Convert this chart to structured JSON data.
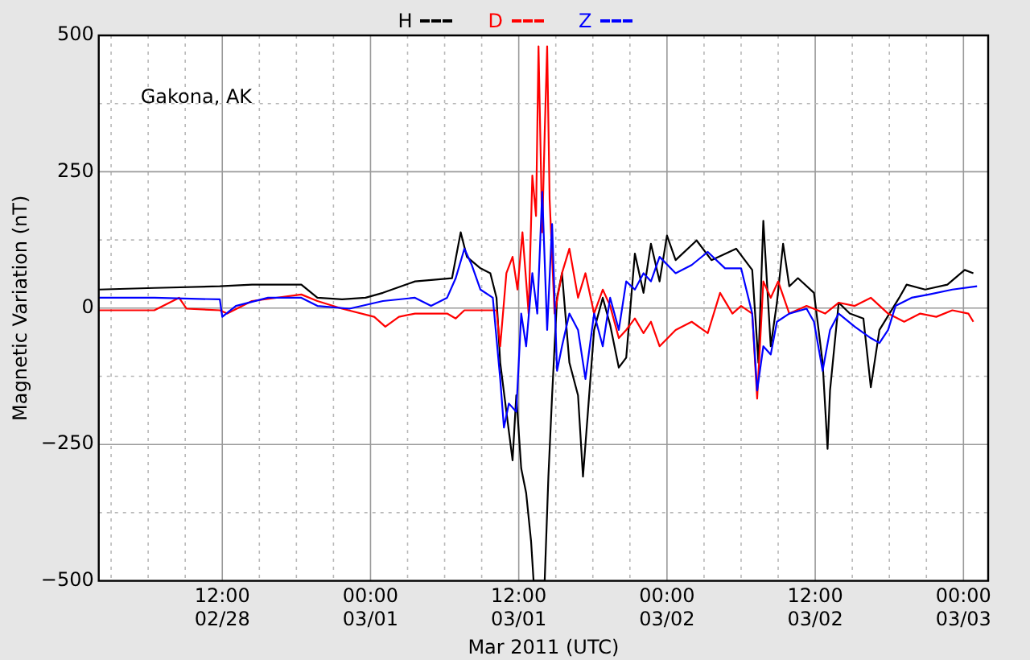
{
  "chart_data": {
    "type": "line",
    "xlabel": "Mar 2011 (UTC)",
    "ylabel": "Magnetic Variation (nT)",
    "annotations": [
      "Gakona, AK"
    ],
    "xlim": [
      "2011-02-28T02:00",
      "2011-03-03T02:00"
    ],
    "xticks": [
      {
        "value": "2011-02-28T03:00",
        "label": null
      },
      {
        "value": "2011-02-28T06:00",
        "label": null
      },
      {
        "value": "2011-02-28T09:00",
        "label": null
      },
      {
        "value": "2011-02-28T12:00",
        "label": "12:00\n02/28"
      },
      {
        "value": "2011-02-28T15:00",
        "label": null
      },
      {
        "value": "2011-02-28T18:00",
        "label": null
      },
      {
        "value": "2011-02-28T21:00",
        "label": null
      },
      {
        "value": "2011-03-01T00:00",
        "label": "00:00\n03/01"
      },
      {
        "value": "2011-03-01T03:00",
        "label": null
      },
      {
        "value": "2011-03-01T06:00",
        "label": null
      },
      {
        "value": "2011-03-01T09:00",
        "label": null
      },
      {
        "value": "2011-03-01T12:00",
        "label": "12:00\n03/01"
      },
      {
        "value": "2011-03-01T15:00",
        "label": null
      },
      {
        "value": "2011-03-01T18:00",
        "label": null
      },
      {
        "value": "2011-03-01T21:00",
        "label": null
      },
      {
        "value": "2011-03-02T00:00",
        "label": "00:00\n03/02"
      },
      {
        "value": "2011-03-02T03:00",
        "label": null
      },
      {
        "value": "2011-03-02T06:00",
        "label": null
      },
      {
        "value": "2011-03-02T09:00",
        "label": null
      },
      {
        "value": "2011-03-02T12:00",
        "label": "12:00\n03/02"
      },
      {
        "value": "2011-03-02T15:00",
        "label": null
      },
      {
        "value": "2011-03-02T18:00",
        "label": null
      },
      {
        "value": "2011-03-02T21:00",
        "label": null
      },
      {
        "value": "2011-03-03T00:00",
        "label": "00:00\n03/03"
      }
    ],
    "ylim": [
      -500,
      500
    ],
    "yticks": [
      {
        "value": -500,
        "label": "−500"
      },
      {
        "value": -375,
        "label": null
      },
      {
        "value": -250,
        "label": "−250"
      },
      {
        "value": -125,
        "label": null
      },
      0,
      {
        "value": 125,
        "label": null
      },
      250,
      {
        "value": 375,
        "label": null
      },
      500
    ],
    "grid": true,
    "legend": "top",
    "marker": "none",
    "line_style": "solid",
    "series": [
      {
        "name": "H",
        "color": "#000000",
        "x": [
          "2011-02-28T02:00",
          "2011-02-28T06:30",
          "2011-02-28T11:48",
          "2011-02-28T14:24",
          "2011-02-28T18:24",
          "2011-02-28T19:42",
          "2011-02-28T21:42",
          "2011-02-28T23:36",
          "2011-03-01T01:00",
          "2011-03-01T03:36",
          "2011-03-01T06:36",
          "2011-03-01T07:18",
          "2011-03-01T07:48",
          "2011-03-01T08:54",
          "2011-03-01T09:42",
          "2011-03-01T10:12",
          "2011-03-01T10:30",
          "2011-03-01T11:00",
          "2011-03-01T11:30",
          "2011-03-01T11:48",
          "2011-03-01T12:12",
          "2011-03-01T12:36",
          "2011-03-01T13:00",
          "2011-03-01T13:12",
          "2011-03-01T14:06",
          "2011-03-01T14:24",
          "2011-03-01T14:42",
          "2011-03-01T15:06",
          "2011-03-01T15:30",
          "2011-03-01T16:06",
          "2011-03-01T16:48",
          "2011-03-01T17:12",
          "2011-03-01T17:36",
          "2011-03-01T18:06",
          "2011-03-01T18:48",
          "2011-03-01T19:24",
          "2011-03-01T20:06",
          "2011-03-01T20:42",
          "2011-03-01T21:24",
          "2011-03-01T22:06",
          "2011-03-01T22:42",
          "2011-03-01T23:24",
          "2011-03-02T00:00",
          "2011-03-02T00:42",
          "2011-03-02T02:24",
          "2011-03-02T03:36",
          "2011-03-02T05:36",
          "2011-03-02T06:54",
          "2011-03-02T07:24",
          "2011-03-02T07:48",
          "2011-03-02T08:24",
          "2011-03-02T08:54",
          "2011-03-02T09:24",
          "2011-03-02T09:54",
          "2011-03-02T10:36",
          "2011-03-02T11:54",
          "2011-03-02T12:36",
          "2011-03-02T13:00",
          "2011-03-02T13:12",
          "2011-03-02T13:54",
          "2011-03-02T14:48",
          "2011-03-02T15:54",
          "2011-03-02T16:30",
          "2011-03-02T17:12",
          "2011-03-02T18:48",
          "2011-03-02T19:24",
          "2011-03-02T20:54",
          "2011-03-02T22:42",
          "2011-03-03T00:06",
          "2011-03-03T00:48"
        ],
        "values": [
          34,
          37,
          40,
          43,
          43,
          19,
          16,
          19,
          28,
          49,
          55,
          139,
          94,
          73,
          64,
          19,
          -100,
          -190,
          -279,
          -160,
          -294,
          -339,
          -428,
          -500,
          -500,
          -309,
          -160,
          19,
          64,
          -100,
          -160,
          -309,
          -190,
          -40,
          19,
          -31,
          -109,
          -91,
          100,
          28,
          118,
          49,
          133,
          88,
          124,
          88,
          109,
          70,
          -100,
          160,
          -70,
          10,
          118,
          40,
          55,
          28,
          -100,
          -258,
          -151,
          10,
          -10,
          -19,
          -145,
          -40,
          19,
          43,
          34,
          43,
          70,
          64
        ]
      },
      {
        "name": "D",
        "color": "#ff0000",
        "x": [
          "2011-02-28T02:00",
          "2011-02-28T06:30",
          "2011-02-28T08:30",
          "2011-02-28T09:06",
          "2011-02-28T11:48",
          "2011-02-28T12:24",
          "2011-02-28T14:24",
          "2011-02-28T18:24",
          "2011-02-28T19:42",
          "2011-02-28T21:42",
          "2011-03-01T00:18",
          "2011-03-01T01:12",
          "2011-03-01T02:18",
          "2011-03-01T03:36",
          "2011-03-01T06:12",
          "2011-03-01T06:54",
          "2011-03-01T07:36",
          "2011-03-01T10:12",
          "2011-03-01T10:30",
          "2011-03-01T11:00",
          "2011-03-01T11:30",
          "2011-03-01T11:54",
          "2011-03-01T12:18",
          "2011-03-01T12:48",
          "2011-03-01T13:06",
          "2011-03-01T13:24",
          "2011-03-01T13:36",
          "2011-03-01T13:54",
          "2011-03-01T14:06",
          "2011-03-01T14:18",
          "2011-03-01T14:30",
          "2011-03-01T14:54",
          "2011-03-01T15:30",
          "2011-03-01T16:06",
          "2011-03-01T16:48",
          "2011-03-01T17:24",
          "2011-03-01T18:06",
          "2011-03-01T18:48",
          "2011-03-01T19:24",
          "2011-03-01T20:06",
          "2011-03-01T20:42",
          "2011-03-01T21:24",
          "2011-03-01T22:06",
          "2011-03-01T22:42",
          "2011-03-01T23:24",
          "2011-03-02T00:42",
          "2011-03-02T02:00",
          "2011-03-02T03:18",
          "2011-03-02T04:18",
          "2011-03-02T05:18",
          "2011-03-02T06:00",
          "2011-03-02T06:54",
          "2011-03-02T07:18",
          "2011-03-02T07:48",
          "2011-03-02T08:24",
          "2011-03-02T09:00",
          "2011-03-02T09:54",
          "2011-03-02T11:18",
          "2011-03-02T12:12",
          "2011-03-02T12:48",
          "2011-03-02T13:54",
          "2011-03-02T15:12",
          "2011-03-02T16:30",
          "2011-03-02T17:54",
          "2011-03-02T19:12",
          "2011-03-02T20:30",
          "2011-03-02T21:48",
          "2011-03-02T23:06",
          "2011-03-03T00:24",
          "2011-03-03T00:48"
        ],
        "values": [
          -4,
          -4,
          19,
          -1,
          -4,
          -10,
          13,
          25,
          13,
          -1,
          -16,
          -34,
          -16,
          -10,
          -10,
          -19,
          -4,
          -4,
          -70,
          64,
          94,
          34,
          139,
          -10,
          243,
          169,
          480,
          139,
          320,
          480,
          199,
          -10,
          64,
          109,
          19,
          64,
          -10,
          34,
          4,
          -55,
          -40,
          -19,
          -46,
          -25,
          -70,
          -40,
          -25,
          -46,
          28,
          -10,
          4,
          -10,
          -166,
          49,
          19,
          49,
          -10,
          4,
          -4,
          -10,
          10,
          4,
          19,
          -10,
          -25,
          -10,
          -16,
          -4,
          -10,
          -25
        ]
      },
      {
        "name": "Z",
        "color": "#0000ff",
        "x": [
          "2011-02-28T02:00",
          "2011-02-28T06:30",
          "2011-02-28T11:48",
          "2011-02-28T12:00",
          "2011-02-28T13:06",
          "2011-02-28T15:42",
          "2011-02-28T18:24",
          "2011-02-28T19:42",
          "2011-02-28T22:18",
          "2011-03-01T01:00",
          "2011-03-01T03:36",
          "2011-03-01T04:54",
          "2011-03-01T06:12",
          "2011-03-01T06:54",
          "2011-03-01T07:36",
          "2011-03-01T08:12",
          "2011-03-01T08:54",
          "2011-03-01T09:54",
          "2011-03-01T10:30",
          "2011-03-01T10:48",
          "2011-03-01T11:12",
          "2011-03-01T11:48",
          "2011-03-01T12:12",
          "2011-03-01T12:36",
          "2011-03-01T13:06",
          "2011-03-01T13:30",
          "2011-03-01T13:54",
          "2011-03-01T14:18",
          "2011-03-01T14:42",
          "2011-03-01T15:06",
          "2011-03-01T15:30",
          "2011-03-01T16:06",
          "2011-03-01T16:48",
          "2011-03-01T17:24",
          "2011-03-01T18:06",
          "2011-03-01T18:48",
          "2011-03-01T19:24",
          "2011-03-01T20:06",
          "2011-03-01T20:42",
          "2011-03-01T21:24",
          "2011-03-01T22:06",
          "2011-03-01T22:42",
          "2011-03-01T23:24",
          "2011-03-02T00:42",
          "2011-03-02T02:00",
          "2011-03-02T03:18",
          "2011-03-02T04:42",
          "2011-03-02T06:00",
          "2011-03-02T06:54",
          "2011-03-02T07:18",
          "2011-03-02T07:48",
          "2011-03-02T08:24",
          "2011-03-02T08:54",
          "2011-03-02T09:54",
          "2011-03-02T11:18",
          "2011-03-02T11:54",
          "2011-03-02T12:36",
          "2011-03-02T13:12",
          "2011-03-02T13:54",
          "2011-03-02T15:12",
          "2011-03-02T16:30",
          "2011-03-02T17:12",
          "2011-03-02T17:54",
          "2011-03-02T18:30",
          "2011-03-02T19:48",
          "2011-03-02T21:12",
          "2011-03-02T23:06",
          "2011-03-03T01:06"
        ],
        "values": [
          19,
          19,
          16,
          -16,
          4,
          19,
          19,
          4,
          -1,
          13,
          19,
          4,
          19,
          55,
          109,
          79,
          34,
          19,
          -130,
          -219,
          -175,
          -190,
          -10,
          -70,
          64,
          -10,
          213,
          -40,
          154,
          -115,
          -70,
          -10,
          -40,
          -130,
          -10,
          -70,
          19,
          -40,
          49,
          34,
          64,
          49,
          94,
          64,
          79,
          103,
          73,
          73,
          -10,
          -151,
          -70,
          -85,
          -25,
          -10,
          -1,
          -25,
          -115,
          -40,
          -10,
          -34,
          -55,
          -64,
          -40,
          4,
          19,
          25,
          34,
          40
        ]
      }
    ]
  }
}
